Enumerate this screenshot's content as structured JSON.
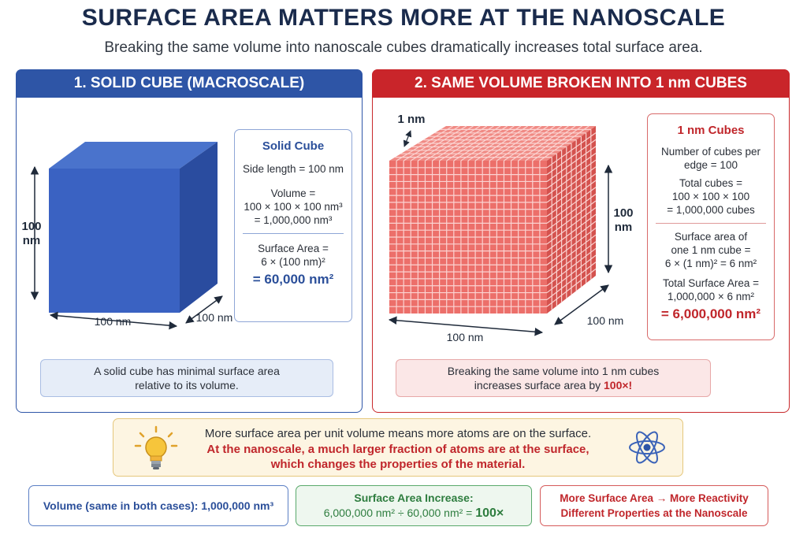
{
  "header": {
    "title": "SURFACE AREA MATTERS MORE AT THE NANOSCALE",
    "subtitle": "Breaking the same volume into nanoscale cubes dramatically increases total surface area."
  },
  "left_panel": {
    "heading": "1. SOLID CUBE (MACROSCALE)",
    "dim_height_1": "100",
    "dim_height_2": "nm",
    "dim_width": "100 nm",
    "dim_depth": "100 nm",
    "info": {
      "title": "Solid Cube",
      "side": "Side length = 100 nm",
      "volume_1": "Volume =",
      "volume_2": "100 × 100 × 100 nm³",
      "volume_3": "= 1,000,000 nm³",
      "area_1": "Surface Area =",
      "area_2": "6 × (100 nm)²",
      "area_result": "= 60,000 nm²"
    },
    "caption_1": "A solid cube has minimal surface area",
    "caption_2": "relative to its volume."
  },
  "right_panel": {
    "heading": "2. SAME VOLUME BROKEN INTO 1 nm CUBES",
    "dim_small": "1 nm",
    "dim_height_1": "100",
    "dim_height_2": "nm",
    "dim_width": "100 nm",
    "dim_depth": "100 nm",
    "info": {
      "title": "1 nm Cubes",
      "per_edge_1": "Number of cubes per",
      "per_edge_2": "edge = 100",
      "total_1": "Total cubes =",
      "total_2": "100 × 100 × 100",
      "total_3": "= 1,000,000 cubes",
      "sa_one_1": "Surface area of",
      "sa_one_2": "one 1 nm cube =",
      "sa_one_3": "6 × (1 nm)² = 6 nm²",
      "total_sa_1": "Total Surface Area =",
      "total_sa_2": "1,000,000 × 6 nm²",
      "total_sa_result": "= 6,000,000 nm²"
    },
    "caption_1": "Breaking the same volume into 1 nm cubes",
    "caption_2": "increases surface area by",
    "caption_highlight": "100×!"
  },
  "note": {
    "line1": "More surface area per unit volume means more atoms are on the surface.",
    "line2": "At the nanoscale, a much larger fraction of atoms are at the surface,",
    "line3": "which changes the properties of the material."
  },
  "bottom": {
    "volume": "Volume (same in both cases): 1,000,000 nm³",
    "increase_title": "Surface Area Increase:",
    "increase_calc": "6,000,000 nm² ÷ 60,000 nm² =",
    "increase_result": "100×",
    "reactivity_1": "More Surface Area → More Reactivity",
    "reactivity_2": "Different Properties at the Nanoscale"
  },
  "icons": {
    "bulb": "lightbulb-icon",
    "atom": "atom-icon"
  },
  "colors": {
    "blue": "#2e55a6",
    "red": "#c9252a",
    "green": "#2e7d3f",
    "cube_blue": "#3d66c4",
    "cube_red": "#ec6f6a"
  }
}
